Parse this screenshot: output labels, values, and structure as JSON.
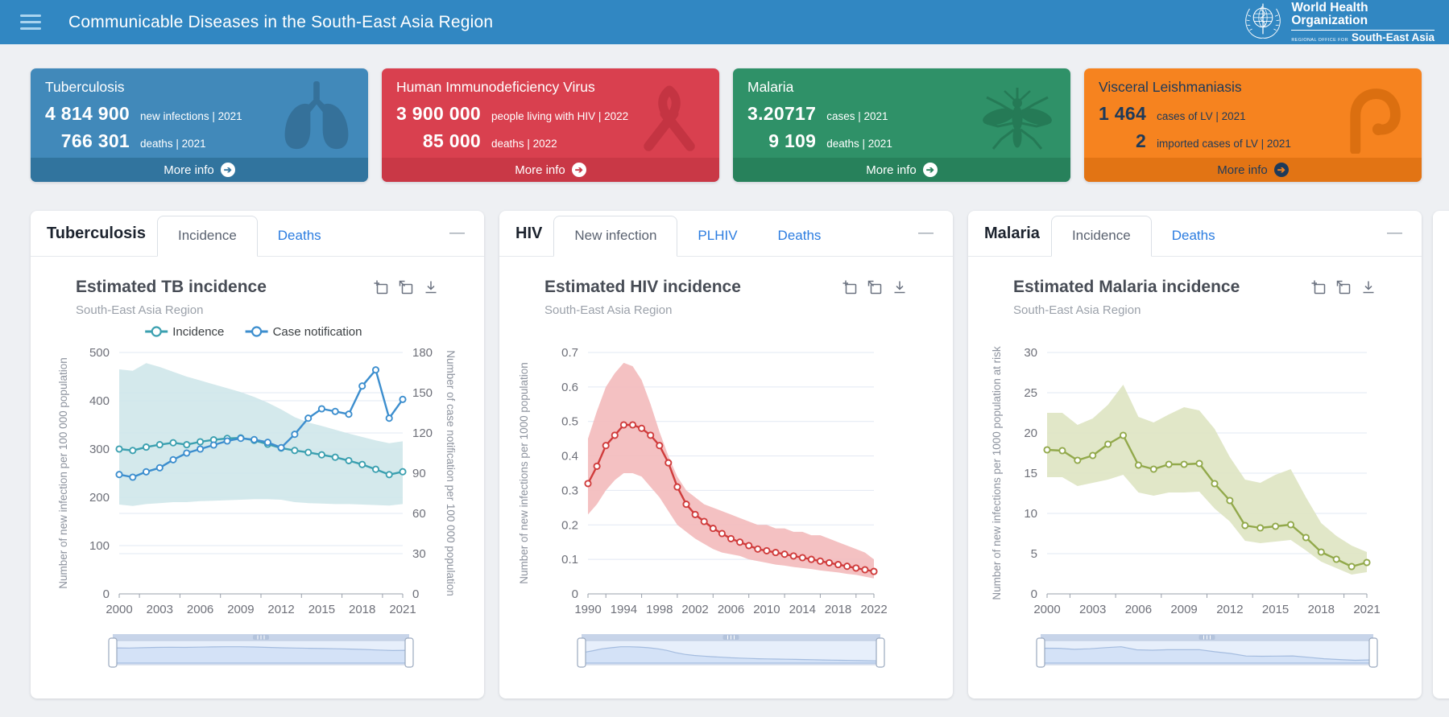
{
  "header": {
    "title": "Communicable Diseases in the South-East Asia Region",
    "logo": {
      "line1": "World Health",
      "line2": "Organization",
      "line3a": "REGIONAL OFFICE FOR",
      "line3b": "South-East Asia"
    }
  },
  "cards": [
    {
      "id": "tuberculosis",
      "title": "Tuberculosis",
      "icon": "lungs-icon",
      "color": "#4189ba",
      "footer_color": "#31749e",
      "icon_color": "#35719a",
      "text_color": "#ffffff",
      "arrow_bg": "#ffffff",
      "arrow_color": "#31749e",
      "stats": [
        {
          "value": "4 814 900",
          "label": "new infections | 2021"
        },
        {
          "value": "766 301",
          "label": "deaths | 2021"
        }
      ],
      "more_label": "More info"
    },
    {
      "id": "hiv",
      "title": "Human Immunodeficiency Virus",
      "icon": "ribbon-icon",
      "color": "#d9404f",
      "footer_color": "#c93846",
      "icon_color": "#c43442",
      "text_color": "#ffffff",
      "arrow_bg": "#ffffff",
      "arrow_color": "#c93846",
      "stats": [
        {
          "value": "3 900 000",
          "label": "people living with HIV | 2022"
        },
        {
          "value": "85 000",
          "label": "deaths | 2022"
        }
      ],
      "more_label": "More info"
    },
    {
      "id": "malaria",
      "title": "Malaria",
      "icon": "mosquito-icon",
      "color": "#2f9168",
      "footer_color": "#27815b",
      "icon_color": "#257a56",
      "text_color": "#ffffff",
      "arrow_bg": "#ffffff",
      "arrow_color": "#27815b",
      "stats": [
        {
          "value": "3.20717",
          "label": "cases | 2021"
        },
        {
          "value": "9 109",
          "label": "deaths | 2021"
        }
      ],
      "more_label": "More info"
    },
    {
      "id": "visceral-leishmaniasis",
      "title": "Visceral Leishmaniasis",
      "icon": "sandfly-icon",
      "color": "#f6831f",
      "footer_color": "#e27414",
      "icon_color": "#db6f10",
      "text_color": "#1e3a5a",
      "arrow_bg": "#1e3a5a",
      "arrow_color": "#f6831f",
      "stats": [
        {
          "value": "1 464",
          "label": "cases of LV | 2021"
        },
        {
          "value": "2",
          "label": "imported cases of LV | 2021"
        }
      ],
      "more_label": "More info"
    }
  ],
  "panels": [
    {
      "id": "tb",
      "name": "Tuberculosis",
      "collapse_label": "—",
      "tabs": [
        {
          "label": "Incidence",
          "active": true
        },
        {
          "label": "Deaths",
          "active": false
        }
      ]
    },
    {
      "id": "hiv",
      "name": "HIV",
      "collapse_label": "—",
      "tabs": [
        {
          "label": "New infection",
          "active": true
        },
        {
          "label": "PLHIV",
          "active": false
        },
        {
          "label": "Deaths",
          "active": false
        }
      ]
    },
    {
      "id": "malaria",
      "name": "Malaria",
      "collapse_label": "—",
      "tabs": [
        {
          "label": "Incidence",
          "active": true
        },
        {
          "label": "Deaths",
          "active": false
        }
      ]
    }
  ],
  "toolbox_icons": [
    "zoom-select-icon",
    "zoom-reset-icon",
    "save-image-icon"
  ],
  "chart_data": [
    {
      "panel": "tb",
      "type": "line",
      "title": "Estimated TB incidence",
      "subtitle": "South-East Asia Region",
      "x": [
        2000,
        2001,
        2002,
        2003,
        2004,
        2005,
        2006,
        2007,
        2008,
        2009,
        2010,
        2011,
        2012,
        2013,
        2014,
        2015,
        2016,
        2017,
        2018,
        2019,
        2020,
        2021
      ],
      "x_tick_labels": [
        2000,
        2003,
        2006,
        2009,
        2012,
        2015,
        2018,
        2021
      ],
      "ylabel_left": "Number of new infection per 100 000 population",
      "ylabel_right": "Number of case notification per 100 000 population",
      "ylim_left": [
        0,
        500
      ],
      "yticks_left": [
        0,
        100,
        200,
        300,
        400,
        500
      ],
      "ylim_right": [
        0,
        180
      ],
      "yticks_right": [
        0,
        30,
        60,
        90,
        120,
        150,
        180
      ],
      "legend": [
        "Incidence",
        "Case notification"
      ],
      "series": [
        {
          "name": "Incidence",
          "axis": "left",
          "color": "#3ba0b0",
          "band_color": "#cfe7ea",
          "values": [
            300,
            297,
            304,
            309,
            313,
            309,
            315,
            319,
            322,
            323,
            318,
            310,
            302,
            297,
            293,
            288,
            283,
            276,
            268,
            258,
            247,
            253
          ],
          "band_upper": [
            465,
            462,
            478,
            470,
            460,
            450,
            442,
            434,
            426,
            418,
            408,
            396,
            382,
            366,
            355,
            348,
            340,
            332,
            325,
            318,
            312,
            316
          ],
          "band_lower": [
            185,
            182,
            186,
            188,
            190,
            190,
            192,
            193,
            194,
            195,
            196,
            196,
            195,
            190,
            188,
            187,
            186,
            186,
            185,
            184,
            183,
            186
          ]
        },
        {
          "name": "Case notification",
          "axis": "right",
          "color": "#3c8ece",
          "values": [
            89,
            87,
            91,
            94,
            100,
            105,
            108,
            111,
            114,
            116,
            115,
            113,
            109,
            119,
            131,
            138,
            136,
            134,
            155,
            167,
            131,
            145
          ]
        }
      ]
    },
    {
      "panel": "hiv",
      "type": "line",
      "title": "Estimated HIV incidence",
      "subtitle": "South-East Asia Region",
      "x": [
        1990,
        1991,
        1992,
        1993,
        1994,
        1995,
        1996,
        1997,
        1998,
        1999,
        2000,
        2001,
        2002,
        2003,
        2004,
        2005,
        2006,
        2007,
        2008,
        2009,
        2010,
        2011,
        2012,
        2013,
        2014,
        2015,
        2016,
        2017,
        2018,
        2019,
        2020,
        2021,
        2022
      ],
      "x_tick_labels": [
        1990,
        1994,
        1998,
        2002,
        2006,
        2010,
        2014,
        2018,
        2022
      ],
      "ylabel_left": "Number of new infections per 1000 population",
      "ylim_left": [
        0,
        0.7
      ],
      "yticks_left": [
        0,
        0.1,
        0.2,
        0.3,
        0.4,
        0.5,
        0.6,
        0.7
      ],
      "legend": [],
      "series": [
        {
          "name": "New infections",
          "axis": "left",
          "color": "#d03c3c",
          "band_color": "#f3babb",
          "values": [
            0.32,
            0.37,
            0.43,
            0.46,
            0.49,
            0.49,
            0.48,
            0.46,
            0.43,
            0.38,
            0.31,
            0.26,
            0.23,
            0.21,
            0.19,
            0.175,
            0.16,
            0.15,
            0.14,
            0.13,
            0.125,
            0.12,
            0.115,
            0.11,
            0.105,
            0.1,
            0.095,
            0.09,
            0.085,
            0.08,
            0.075,
            0.07,
            0.065
          ],
          "band_upper": [
            0.45,
            0.53,
            0.6,
            0.64,
            0.67,
            0.66,
            0.62,
            0.55,
            0.47,
            0.4,
            0.34,
            0.3,
            0.28,
            0.26,
            0.25,
            0.24,
            0.23,
            0.22,
            0.21,
            0.2,
            0.2,
            0.19,
            0.19,
            0.18,
            0.18,
            0.17,
            0.17,
            0.16,
            0.15,
            0.14,
            0.13,
            0.12,
            0.1
          ],
          "band_lower": [
            0.23,
            0.26,
            0.3,
            0.33,
            0.35,
            0.35,
            0.34,
            0.31,
            0.28,
            0.24,
            0.2,
            0.18,
            0.16,
            0.145,
            0.13,
            0.12,
            0.115,
            0.11,
            0.1,
            0.095,
            0.09,
            0.085,
            0.082,
            0.078,
            0.075,
            0.072,
            0.068,
            0.065,
            0.062,
            0.058,
            0.055,
            0.05,
            0.045
          ]
        }
      ]
    },
    {
      "panel": "malaria",
      "type": "line",
      "title": "Estimated Malaria incidence",
      "subtitle": "South-East Asia Region",
      "x": [
        2000,
        2001,
        2002,
        2003,
        2004,
        2005,
        2006,
        2007,
        2008,
        2009,
        2010,
        2011,
        2012,
        2013,
        2014,
        2015,
        2016,
        2017,
        2018,
        2019,
        2020,
        2021
      ],
      "x_tick_labels": [
        2000,
        2003,
        2006,
        2009,
        2012,
        2015,
        2018,
        2021
      ],
      "ylabel_left": "Number of new infections per 1000 population at risk",
      "ylim_left": [
        0,
        30
      ],
      "yticks_left": [
        0,
        5,
        10,
        15,
        20,
        25,
        30
      ],
      "legend": [],
      "series": [
        {
          "name": "Incidence",
          "axis": "left",
          "color": "#92a94b",
          "band_color": "#dee4c2",
          "values": [
            17.9,
            17.8,
            16.6,
            17.2,
            18.6,
            19.7,
            16.0,
            15.5,
            16.1,
            16.1,
            16.2,
            13.7,
            11.6,
            8.5,
            8.2,
            8.4,
            8.6,
            7.0,
            5.2,
            4.3,
            3.4,
            3.9
          ],
          "band_upper": [
            22.5,
            22.5,
            21.0,
            21.8,
            23.5,
            26.0,
            22.0,
            21.3,
            22.3,
            23.2,
            22.8,
            20.5,
            17.0,
            14.2,
            13.8,
            14.8,
            15.5,
            12.0,
            8.8,
            7.2,
            6.0,
            5.2
          ],
          "band_lower": [
            14.5,
            14.5,
            13.4,
            13.8,
            14.2,
            14.8,
            12.6,
            12.2,
            12.6,
            12.6,
            12.7,
            10.6,
            9.0,
            6.6,
            6.3,
            6.5,
            6.7,
            5.4,
            4.0,
            3.2,
            2.4,
            2.7
          ]
        }
      ]
    }
  ]
}
